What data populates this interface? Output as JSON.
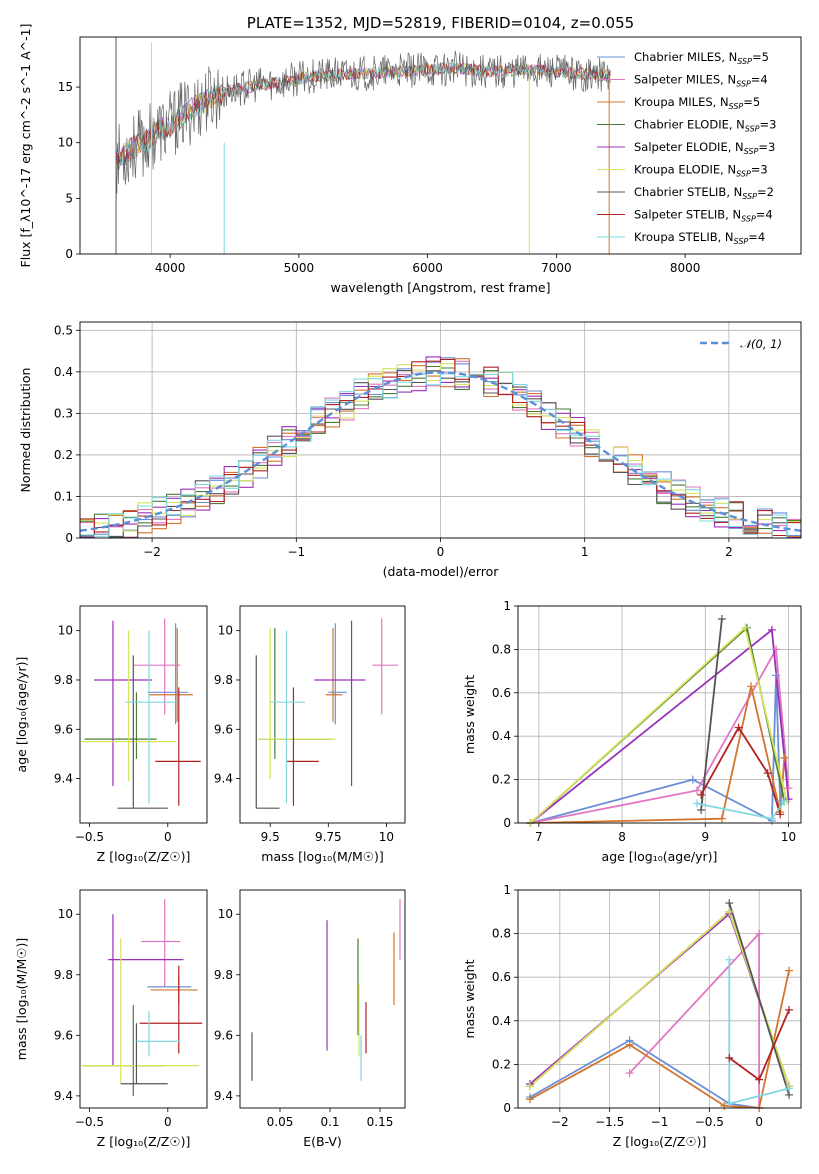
{
  "chart_data": [
    {
      "id": "spectrum",
      "type": "line",
      "title": "PLATE=1352, MJD=52819, FIBERID=0104, z=0.055",
      "xlabel": "wavelength [Angstrom, rest frame]",
      "ylabel": "Flux [f_λ10^-17 erg cm^-2 s^-1 A^-1]",
      "xlim": [
        3300,
        8900
      ],
      "ylim": [
        0,
        19.5
      ],
      "xticks": [
        4000,
        5000,
        6000,
        7000,
        8000
      ],
      "yticks": [
        0,
        5,
        10,
        15
      ],
      "continuum_x": [
        3580,
        3700,
        3800,
        3900,
        4000,
        4100,
        4300,
        4500,
        4700,
        4900,
        5100,
        5300,
        5600,
        5900,
        6200,
        6500,
        6800,
        7100,
        7400
      ],
      "continuum_y": [
        8.5,
        9.5,
        10.0,
        11.0,
        11.5,
        12.5,
        14.0,
        14.8,
        15.2,
        15.5,
        16.0,
        16.1,
        16.3,
        16.5,
        16.7,
        16.4,
        16.6,
        16.3,
        16.0
      ],
      "legend": [
        {
          "label": "Chabrier MILES, N",
          "sub": "SSP",
          "suffix": "=5",
          "color": "#6b8fd6"
        },
        {
          "label": "Salpeter MILES, N",
          "sub": "SSP",
          "suffix": "=4",
          "color": "#e377c2"
        },
        {
          "label": "Kroupa MILES, N",
          "sub": "SSP",
          "suffix": "=5",
          "color": "#d2752e"
        },
        {
          "label": "Chabrier ELODIE, N",
          "sub": "SSP",
          "suffix": "=3",
          "color": "#4a7d3a"
        },
        {
          "label": "Salpeter ELODIE, N",
          "sub": "SSP",
          "suffix": "=3",
          "color": "#9b30b8"
        },
        {
          "label": "Kroupa ELODIE, N",
          "sub": "SSP",
          "suffix": "=3",
          "color": "#d7e35a"
        },
        {
          "label": "Chabrier STELIB, N",
          "sub": "SSP",
          "suffix": "=2",
          "color": "#555555"
        },
        {
          "label": "Salpeter STELIB, N",
          "sub": "SSP",
          "suffix": "=4",
          "color": "#b22222"
        },
        {
          "label": "Kroupa STELIB, N",
          "sub": "SSP",
          "suffix": "=4",
          "color": "#7fd8e0"
        }
      ]
    },
    {
      "id": "residuals",
      "type": "histogram",
      "xlabel": "(data-model)/error",
      "ylabel": "Normed distribution",
      "xlim": [
        -2.5,
        2.5
      ],
      "ylim": [
        0,
        0.52
      ],
      "xticks": [
        -2,
        -1,
        0,
        1,
        2
      ],
      "yticks": [
        0.0,
        0.1,
        0.2,
        0.3,
        0.4,
        0.5
      ],
      "bins_per_unit": 10,
      "reference": {
        "label": "𝒩(0, 1)",
        "color": "#5b8fd9"
      }
    },
    {
      "id": "age_vs_Z",
      "type": "errorbar",
      "xlabel": "Z [log₁₀(Z/Z☉)]",
      "ylabel": "age  [log₁₀(age/yr)]",
      "xlim": [
        -0.56,
        0.25
      ],
      "ylim": [
        9.22,
        10.1
      ],
      "xticks": [
        -0.5,
        0.0
      ],
      "yticks": [
        9.4,
        9.6,
        9.8,
        10.0
      ],
      "points": [
        {
          "x": 0.05,
          "y": 9.75,
          "xerr": [
            0.18,
            0.08
          ],
          "yerr": [
            0.13,
            0.28
          ],
          "color": "#6b8fd6"
        },
        {
          "x": -0.02,
          "y": 9.86,
          "xerr": [
            0.2,
            0.1
          ],
          "yerr": [
            0.2,
            0.19
          ],
          "color": "#e377c2"
        },
        {
          "x": 0.06,
          "y": 9.74,
          "xerr": [
            0.18,
            0.1
          ],
          "yerr": [
            0.11,
            0.27
          ],
          "color": "#d2752e"
        },
        {
          "x": -0.2,
          "y": 9.56,
          "xerr": [
            0.33,
            0.13
          ],
          "yerr": [
            0.08,
            0.19
          ],
          "color": "#4a7d3a"
        },
        {
          "x": -0.35,
          "y": 9.8,
          "xerr": [
            0.12,
            0.25
          ],
          "yerr": [
            0.43,
            0.24
          ],
          "color": "#9b30b8"
        },
        {
          "x": -0.25,
          "y": 9.55,
          "xerr": [
            0.3,
            0.3
          ],
          "yerr": [
            0.16,
            0.45
          ],
          "color": "#d7e35a"
        },
        {
          "x": -0.22,
          "y": 9.28,
          "xerr": [
            0.1,
            0.22
          ],
          "yerr": [
            0.0,
            0.62
          ],
          "color": "#555555"
        },
        {
          "x": 0.07,
          "y": 9.47,
          "xerr": [
            0.15,
            0.14
          ],
          "yerr": [
            0.18,
            0.3
          ],
          "color": "#b22222"
        },
        {
          "x": -0.12,
          "y": 9.71,
          "xerr": [
            0.15,
            0.18
          ],
          "yerr": [
            0.41,
            0.29
          ],
          "color": "#7fd8e0"
        }
      ]
    },
    {
      "id": "age_vs_mass",
      "type": "errorbar",
      "xlabel": "mass [log₁₀(M/M☉)]",
      "ylabel": "",
      "xlim": [
        9.37,
        10.08
      ],
      "ylim": [
        9.22,
        10.1
      ],
      "xticks": [
        9.5,
        9.75,
        10.0
      ],
      "yticks": [
        9.4,
        9.6,
        9.8,
        10.0
      ],
      "points": [
        {
          "x": 9.78,
          "y": 9.75,
          "xerr": [
            0.03,
            0.05
          ],
          "yerr": [
            0.13,
            0.28
          ],
          "color": "#6b8fd6"
        },
        {
          "x": 9.98,
          "y": 9.86,
          "xerr": [
            0.04,
            0.07
          ],
          "yerr": [
            0.2,
            0.19
          ],
          "color": "#e377c2"
        },
        {
          "x": 9.77,
          "y": 9.74,
          "xerr": [
            0.03,
            0.04
          ],
          "yerr": [
            0.11,
            0.27
          ],
          "color": "#d2752e"
        },
        {
          "x": 9.52,
          "y": 9.56,
          "xerr": [
            0.07,
            0.24
          ],
          "yerr": [
            0.08,
            0.45
          ],
          "color": "#4a7d3a"
        },
        {
          "x": 9.85,
          "y": 9.8,
          "xerr": [
            0.16,
            0.06
          ],
          "yerr": [
            0.43,
            0.24
          ],
          "color": "#9b30b8"
        },
        {
          "x": 9.5,
          "y": 9.56,
          "xerr": [
            0.05,
            0.28
          ],
          "yerr": [
            0.16,
            0.45
          ],
          "color": "#d7e35a"
        },
        {
          "x": 9.44,
          "y": 9.28,
          "xerr": [
            0.0,
            0.1
          ],
          "yerr": [
            0.0,
            0.62
          ],
          "color": "#555555"
        },
        {
          "x": 9.6,
          "y": 9.47,
          "xerr": [
            0.03,
            0.11
          ],
          "yerr": [
            0.18,
            0.3
          ],
          "color": "#b22222"
        },
        {
          "x": 9.57,
          "y": 9.71,
          "xerr": [
            0.07,
            0.08
          ],
          "yerr": [
            0.41,
            0.29
          ],
          "color": "#7fd8e0"
        }
      ]
    },
    {
      "id": "weight_vs_age",
      "type": "line",
      "xlabel": "age  [log₁₀(age/yr)]",
      "ylabel": "mass weight",
      "xlim": [
        6.75,
        10.15
      ],
      "ylim": [
        0,
        1.0
      ],
      "xticks": [
        7,
        8,
        9,
        10
      ],
      "yticks": [
        0.0,
        0.2,
        0.4,
        0.6,
        0.8,
        1.0
      ],
      "series": [
        {
          "color": "#6b8fd6",
          "x": [
            6.9,
            8.85,
            9.8,
            9.85,
            9.9
          ],
          "y": [
            0.0,
            0.2,
            0.01,
            0.68,
            0.1
          ]
        },
        {
          "color": "#e377c2",
          "x": [
            6.9,
            8.9,
            9.85,
            10.0
          ],
          "y": [
            0.0,
            0.15,
            0.8,
            0.16
          ]
        },
        {
          "color": "#d2752e",
          "x": [
            6.9,
            9.2,
            9.55,
            9.9,
            9.95
          ],
          "y": [
            0.0,
            0.02,
            0.63,
            0.05,
            0.3
          ]
        },
        {
          "color": "#4a7d3a",
          "x": [
            6.9,
            9.5,
            9.95
          ],
          "y": [
            0.0,
            0.9,
            0.1
          ]
        },
        {
          "color": "#9b30b8",
          "x": [
            6.9,
            9.8,
            10.0
          ],
          "y": [
            0.0,
            0.89,
            0.11
          ]
        },
        {
          "color": "#d7e35a",
          "x": [
            6.9,
            9.48,
            9.98
          ],
          "y": [
            0.0,
            0.9,
            0.1
          ]
        },
        {
          "color": "#555555",
          "x": [
            8.95,
            9.2
          ],
          "y": [
            0.06,
            0.94
          ]
        },
        {
          "color": "#b22222",
          "x": [
            8.95,
            9.4,
            9.75,
            9.9
          ],
          "y": [
            0.13,
            0.44,
            0.23,
            0.04
          ]
        },
        {
          "color": "#7fd8e0",
          "x": [
            8.9,
            9.8,
            9.95
          ],
          "y": [
            0.09,
            0.02,
            0.1
          ]
        }
      ]
    },
    {
      "id": "mass_vs_Z",
      "type": "errorbar",
      "xlabel": "Z [log₁₀(Z/Z☉)]",
      "ylabel": "mass [log₁₀(M/M☉)]",
      "xlim": [
        -0.56,
        0.25
      ],
      "ylim": [
        9.36,
        10.08
      ],
      "xticks": [
        -0.5,
        0.0
      ],
      "yticks": [
        9.4,
        9.6,
        9.8,
        10.0
      ],
      "points": [
        {
          "x": 0.05,
          "y": 9.76,
          "xerr": [
            0.18,
            0.1
          ],
          "yerr": [
            0.0,
            0.0
          ],
          "color": "#6b8fd6"
        },
        {
          "x": -0.02,
          "y": 9.91,
          "xerr": [
            0.15,
            0.1
          ],
          "yerr": [
            0.15,
            0.14
          ],
          "color": "#e377c2"
        },
        {
          "x": 0.07,
          "y": 9.75,
          "xerr": [
            0.18,
            0.12
          ],
          "yerr": [
            0.05,
            0.05
          ],
          "color": "#d2752e"
        },
        {
          "x": -0.22,
          "y": 9.5,
          "xerr": [
            0.32,
            0.2
          ],
          "yerr": [
            0.1,
            0.2
          ],
          "color": "#4a7d3a"
        },
        {
          "x": -0.35,
          "y": 9.85,
          "xerr": [
            0.03,
            0.45
          ],
          "yerr": [
            0.35,
            0.15
          ],
          "color": "#9b30b8"
        },
        {
          "x": -0.3,
          "y": 9.5,
          "xerr": [
            0.25,
            0.5
          ],
          "yerr": [
            0.06,
            0.42
          ],
          "color": "#d7e35a"
        },
        {
          "x": -0.2,
          "y": 9.44,
          "xerr": [
            0.1,
            0.2
          ],
          "yerr": [
            0.0,
            0.2
          ],
          "color": "#555555"
        },
        {
          "x": 0.07,
          "y": 9.64,
          "xerr": [
            0.25,
            0.15
          ],
          "yerr": [
            0.1,
            0.19
          ],
          "color": "#b22222"
        },
        {
          "x": -0.12,
          "y": 9.58,
          "xerr": [
            0.08,
            0.2
          ],
          "yerr": [
            0.05,
            0.1
          ],
          "color": "#7fd8e0"
        }
      ]
    },
    {
      "id": "mass_vs_ebv",
      "type": "errorbar",
      "xlabel": "E(B-V)",
      "ylabel": "",
      "xlim": [
        0.01,
        0.175
      ],
      "ylim": [
        9.36,
        10.08
      ],
      "xticks": [
        0.05,
        0.1,
        0.15
      ],
      "yticks": [
        9.4,
        9.6,
        9.8,
        10.0
      ],
      "points": [
        {
          "x": 0.022,
          "y": 9.55,
          "yerr": [
            0.1,
            0.06
          ],
          "color": "#555555"
        },
        {
          "x": 0.097,
          "y": 9.8,
          "yerr": [
            0.25,
            0.18
          ],
          "color": "#9b30b8"
        },
        {
          "x": 0.128,
          "y": 9.75,
          "yerr": [
            0.15,
            0.17
          ],
          "color": "#4a7d3a"
        },
        {
          "x": 0.129,
          "y": 9.6,
          "yerr": [
            0.07,
            0.17
          ],
          "color": "#d7e35a"
        },
        {
          "x": 0.131,
          "y": 9.55,
          "yerr": [
            0.1,
            0.05
          ],
          "color": "#7fd8e0"
        },
        {
          "x": 0.136,
          "y": 9.62,
          "yerr": [
            0.08,
            0.09
          ],
          "color": "#b22222"
        },
        {
          "x": 0.164,
          "y": 9.82,
          "yerr": [
            0.12,
            0.12
          ],
          "color": "#d2752e"
        },
        {
          "x": 0.17,
          "y": 9.95,
          "yerr": [
            0.1,
            0.1
          ],
          "color": "#e377c2"
        }
      ]
    },
    {
      "id": "weight_vs_Z",
      "type": "line",
      "xlabel": "Z [log₁₀(Z/Z☉)]",
      "ylabel": "mass weight",
      "xlim": [
        -2.42,
        0.42
      ],
      "ylim": [
        0,
        1.0
      ],
      "xticks": [
        -2.0,
        -1.5,
        -1.0,
        -0.5,
        0.0
      ],
      "yticks": [
        0.0,
        0.2,
        0.4,
        0.6,
        0.8,
        1.0
      ],
      "series": [
        {
          "color": "#6b8fd6",
          "x": [
            -2.3,
            -1.3,
            -0.3,
            0.0
          ],
          "y": [
            0.05,
            0.31,
            0.02,
            0.0
          ]
        },
        {
          "color": "#e377c2",
          "x": [
            -1.3,
            0.0,
            0.0
          ],
          "y": [
            0.16,
            0.8,
            0.0
          ]
        },
        {
          "color": "#d2752e",
          "x": [
            -2.3,
            -1.3,
            -0.35,
            0.0,
            0.3
          ],
          "y": [
            0.04,
            0.29,
            0.01,
            0.0,
            0.63
          ]
        },
        {
          "color": "#4a7d3a",
          "x": [
            -2.3,
            -0.3,
            0.3
          ],
          "y": [
            0.1,
            0.9,
            0.1
          ]
        },
        {
          "color": "#9b30b8",
          "x": [
            -2.3,
            -0.3,
            0.3
          ],
          "y": [
            0.11,
            0.89,
            0.1
          ]
        },
        {
          "color": "#d7e35a",
          "x": [
            -2.3,
            -0.3,
            0.3
          ],
          "y": [
            0.1,
            0.9,
            0.1
          ]
        },
        {
          "color": "#555555",
          "x": [
            -0.3,
            0.3
          ],
          "y": [
            0.94,
            0.06
          ]
        },
        {
          "color": "#b22222",
          "x": [
            -0.3,
            0.0,
            0.3
          ],
          "y": [
            0.23,
            0.13,
            0.45
          ]
        },
        {
          "color": "#7fd8e0",
          "x": [
            -0.3,
            -0.3,
            0.3
          ],
          "y": [
            0.68,
            0.02,
            0.09
          ]
        }
      ]
    }
  ]
}
